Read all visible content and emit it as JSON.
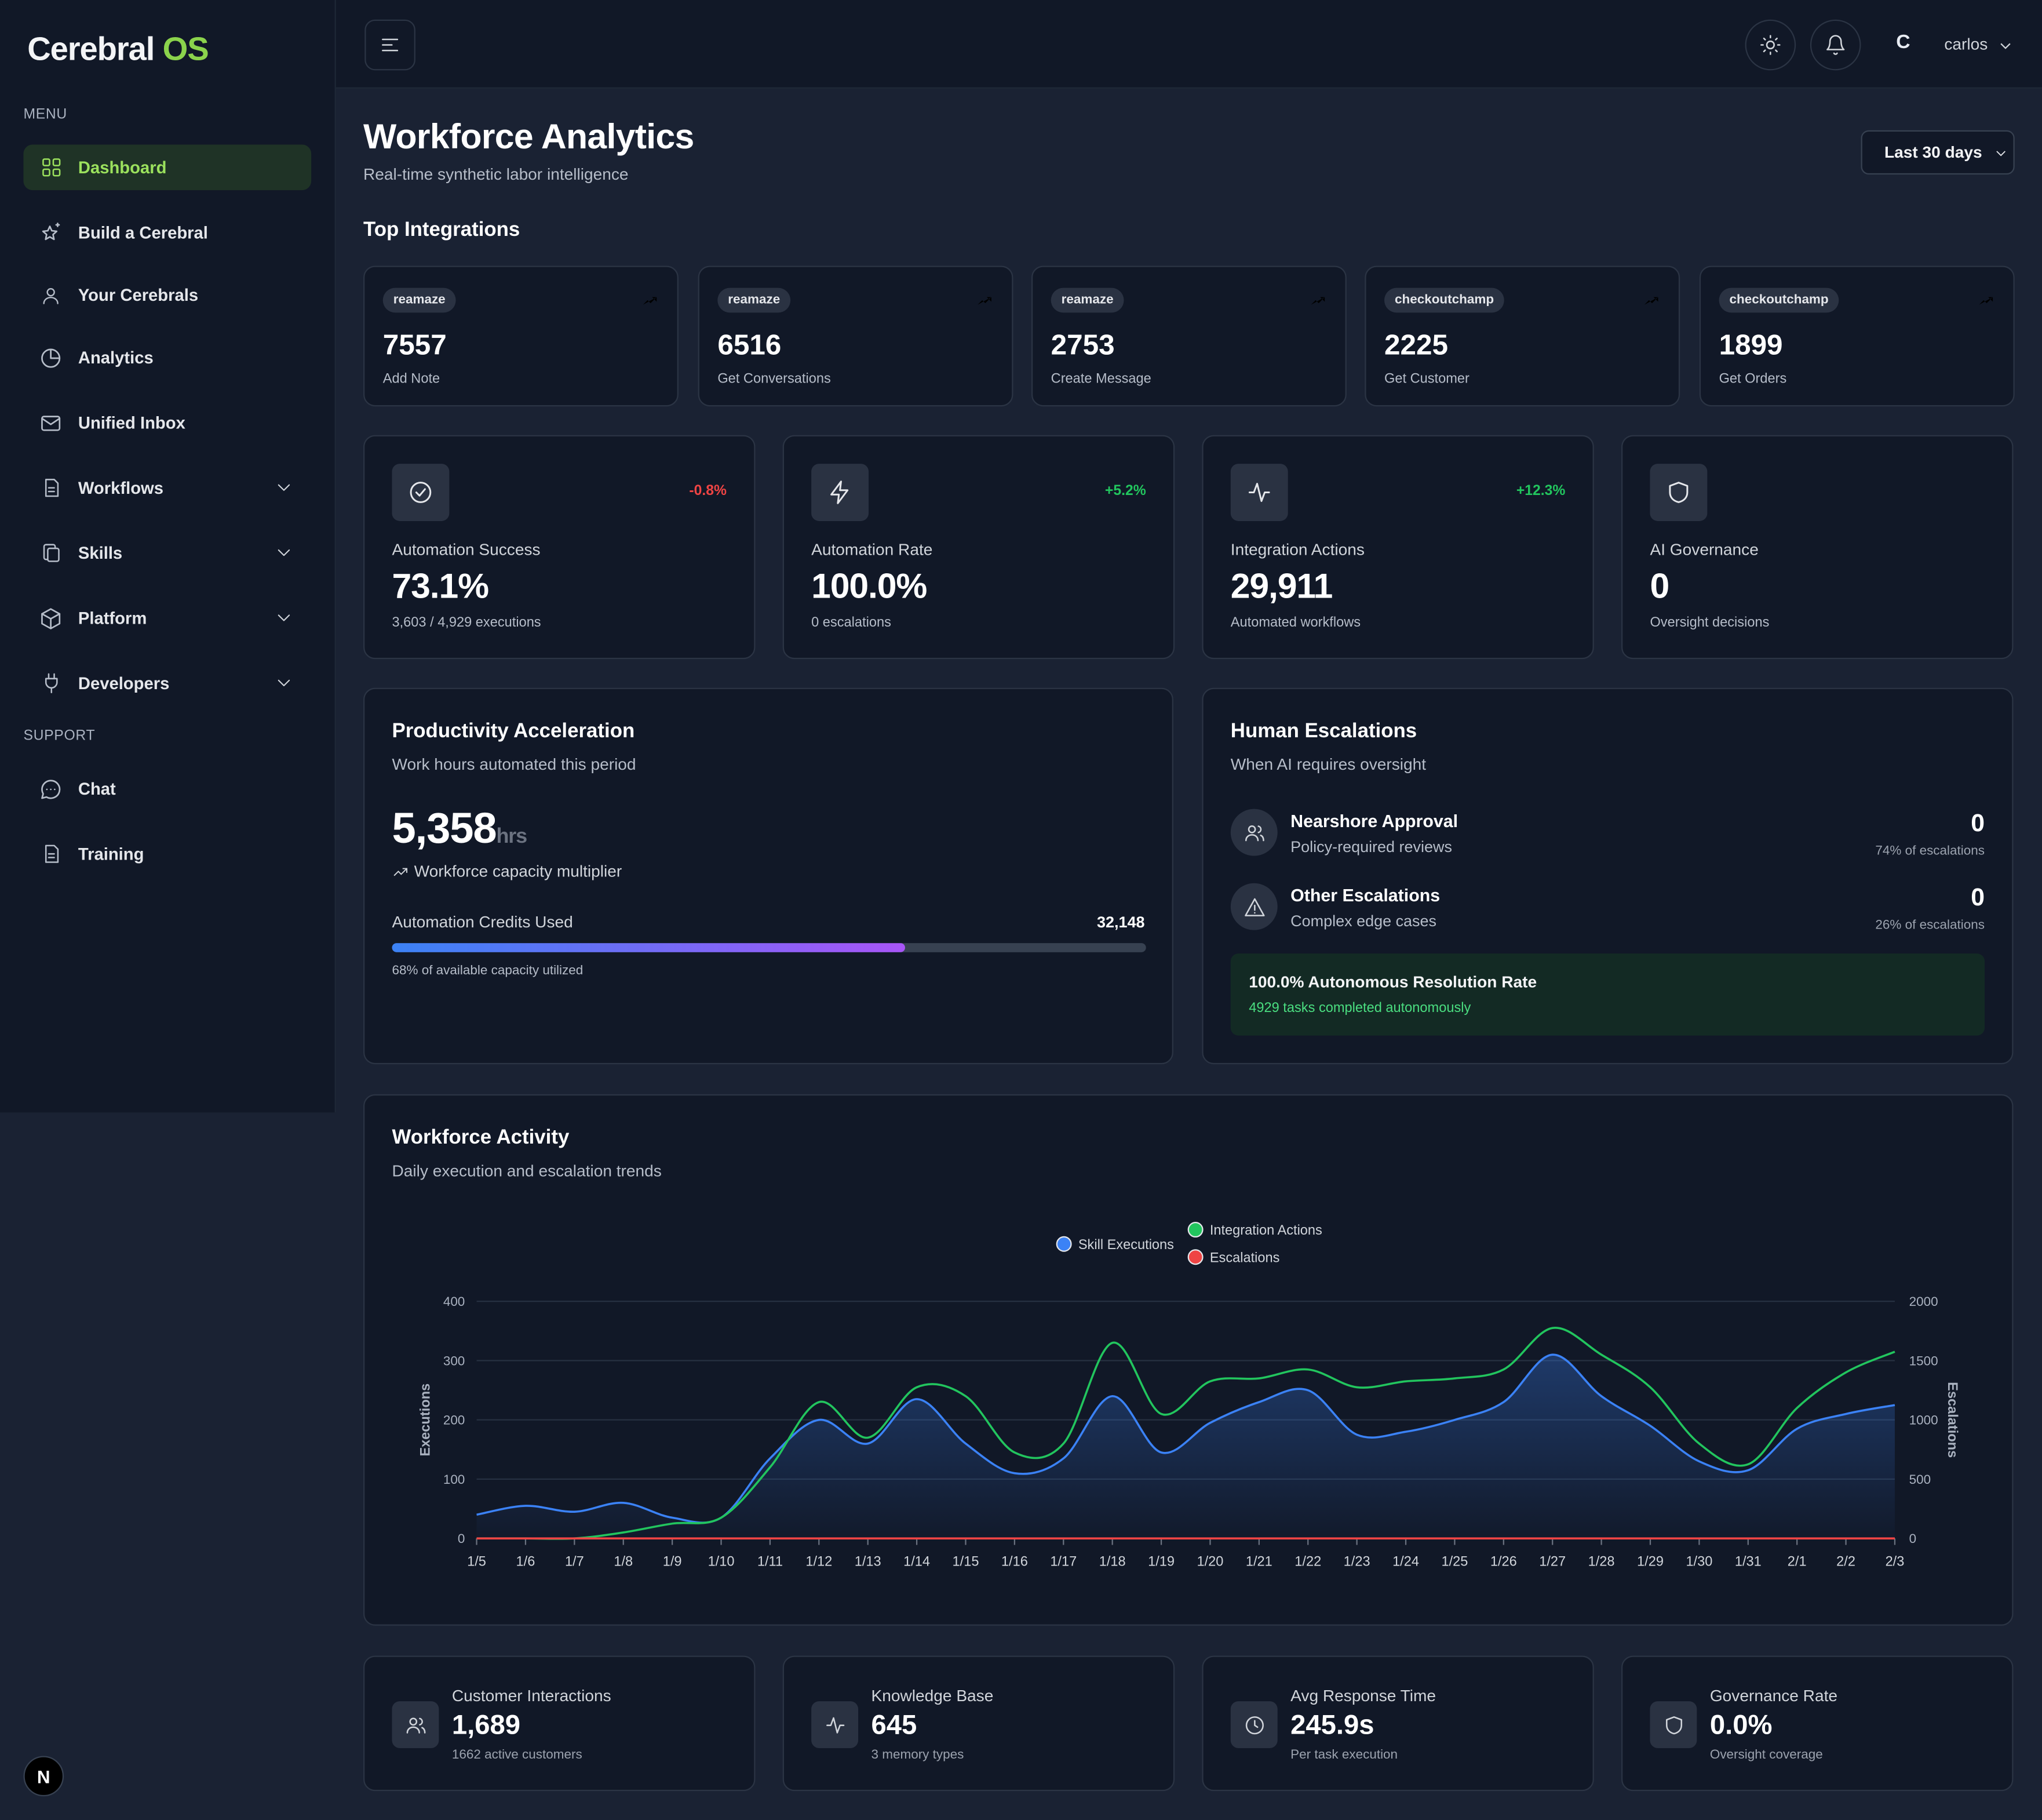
{
  "brand": {
    "name_main": "Cerebral ",
    "name_accent": "OS"
  },
  "sidebar": {
    "menu_label": "MENU",
    "support_label": "SUPPORT",
    "items": [
      {
        "label": "Dashboard",
        "icon": "grid-icon"
      },
      {
        "label": "Build a Cerebral",
        "icon": "sparkle-star-icon"
      },
      {
        "label": "Your Cerebrals",
        "icon": "user-icon"
      },
      {
        "label": "Analytics",
        "icon": "pie-chart-icon"
      },
      {
        "label": "Unified Inbox",
        "icon": "mail-icon"
      },
      {
        "label": "Workflows",
        "icon": "document-icon"
      },
      {
        "label": "Skills",
        "icon": "copy-icon"
      },
      {
        "label": "Platform",
        "icon": "cube-icon"
      },
      {
        "label": "Developers",
        "icon": "plug-icon"
      }
    ],
    "support_items": [
      {
        "label": "Chat",
        "icon": "chat-bubble-icon"
      },
      {
        "label": "Training",
        "icon": "document-icon"
      }
    ]
  },
  "topbar": {
    "user_initial": "C",
    "user_name": "carlos"
  },
  "header": {
    "title": "Workforce Analytics",
    "subtitle": "Real-time synthetic labor intelligence",
    "range": "Last 30 days"
  },
  "integrations": {
    "title": "Top Integrations",
    "items": [
      {
        "source": "reamaze",
        "value": "7557",
        "label": "Add Note"
      },
      {
        "source": "reamaze",
        "value": "6516",
        "label": "Get Conversations"
      },
      {
        "source": "reamaze",
        "value": "2753",
        "label": "Create Message"
      },
      {
        "source": "checkoutchamp",
        "value": "2225",
        "label": "Get Customer"
      },
      {
        "source": "checkoutchamp",
        "value": "1899",
        "label": "Get Orders"
      }
    ]
  },
  "metrics": [
    {
      "label": "Automation Success",
      "value": "73.1%",
      "sub": "3,603 / 4,929 executions",
      "change": "-0.8%",
      "change_color": "#ef4444",
      "icon": "check-circle-icon"
    },
    {
      "label": "Automation Rate",
      "value": "100.0%",
      "sub": "0 escalations",
      "change": "+5.2%",
      "change_color": "#22c55e",
      "icon": "lightning-icon"
    },
    {
      "label": "Integration Actions",
      "value": "29,911",
      "sub": "Automated workflows",
      "change": "+12.3%",
      "change_color": "#22c55e",
      "icon": "activity-icon"
    },
    {
      "label": "AI Governance",
      "value": "0",
      "sub": "Oversight decisions",
      "change": "",
      "change_color": "#22c55e",
      "icon": "shield-icon"
    }
  ],
  "productivity": {
    "title": "Productivity Acceleration",
    "subtitle": "Work hours automated this period",
    "value": "5,358",
    "unit": "hrs",
    "multiplier": "Workforce capacity multiplier",
    "credits_label": "Automation Credits Used",
    "credits_value": "32,148",
    "credits_fraction": 0.68,
    "credits_sub": "68% of available capacity utilized"
  },
  "escalations": {
    "title": "Human Escalations",
    "subtitle": "When AI requires oversight",
    "rows": [
      {
        "title": "Nearshore Approval",
        "sub": "Policy-required reviews",
        "count": "0",
        "pct": "74% of escalations",
        "icon": "users-icon"
      },
      {
        "title": "Other Escalations",
        "sub": "Complex edge cases",
        "count": "0",
        "pct": "26% of escalations",
        "icon": "warning-triangle-icon"
      }
    ],
    "resolution_title": "100.0% Autonomous Resolution Rate",
    "resolution_sub": "4929 tasks completed autonomously"
  },
  "activity": {
    "title": "Workforce Activity",
    "subtitle": "Daily execution and escalation trends"
  },
  "chart_data": {
    "type": "line",
    "x": [
      "1/5",
      "1/6",
      "1/7",
      "1/8",
      "1/9",
      "1/10",
      "1/11",
      "1/12",
      "1/13",
      "1/14",
      "1/15",
      "1/16",
      "1/17",
      "1/18",
      "1/19",
      "1/20",
      "1/21",
      "1/22",
      "1/23",
      "1/24",
      "1/25",
      "1/26",
      "1/27",
      "1/28",
      "1/29",
      "1/30",
      "1/31",
      "2/1",
      "2/2",
      "2/3"
    ],
    "ylabel": "Executions",
    "y2label": "Escalations",
    "ylim": [
      0,
      400
    ],
    "y2lim": [
      0,
      2000
    ],
    "yticks": [
      0,
      100,
      200,
      300,
      400
    ],
    "y2ticks": [
      0,
      500,
      1000,
      1500,
      2000
    ],
    "legend_position": "top-center",
    "series": [
      {
        "name": "Skill Executions",
        "axis": "left",
        "color": "#3b82f6",
        "area": true,
        "values": [
          40,
          55,
          45,
          60,
          35,
          35,
          135,
          200,
          160,
          235,
          160,
          110,
          135,
          240,
          145,
          195,
          230,
          250,
          175,
          180,
          200,
          230,
          310,
          240,
          190,
          130,
          115,
          185,
          210,
          225
        ]
      },
      {
        "name": "Integration Actions",
        "axis": "left",
        "color": "#22c55e",
        "area": false,
        "values": [
          0,
          0,
          0,
          10,
          25,
          35,
          120,
          230,
          170,
          255,
          240,
          145,
          160,
          330,
          210,
          265,
          270,
          285,
          255,
          265,
          270,
          285,
          355,
          310,
          255,
          160,
          125,
          220,
          280,
          315
        ]
      },
      {
        "name": "Escalations",
        "axis": "right",
        "color": "#ef4444",
        "area": false,
        "values": [
          0,
          0,
          0,
          0,
          0,
          0,
          0,
          0,
          0,
          0,
          0,
          0,
          0,
          0,
          0,
          0,
          0,
          0,
          0,
          0,
          0,
          0,
          0,
          0,
          0,
          0,
          0,
          0,
          0,
          0
        ]
      }
    ]
  },
  "bottom_stats": [
    {
      "label": "Customer Interactions",
      "value": "1,689",
      "sub": "1662 active customers",
      "icon": "users-icon"
    },
    {
      "label": "Knowledge Base",
      "value": "645",
      "sub": "3 memory types",
      "icon": "activity-icon"
    },
    {
      "label": "Avg Response Time",
      "value": "245.9s",
      "sub": "Per task execution",
      "icon": "clock-icon"
    },
    {
      "label": "Governance Rate",
      "value": "0.0%",
      "sub": "Oversight coverage",
      "icon": "shield-icon"
    }
  ],
  "dev_badge": "N"
}
